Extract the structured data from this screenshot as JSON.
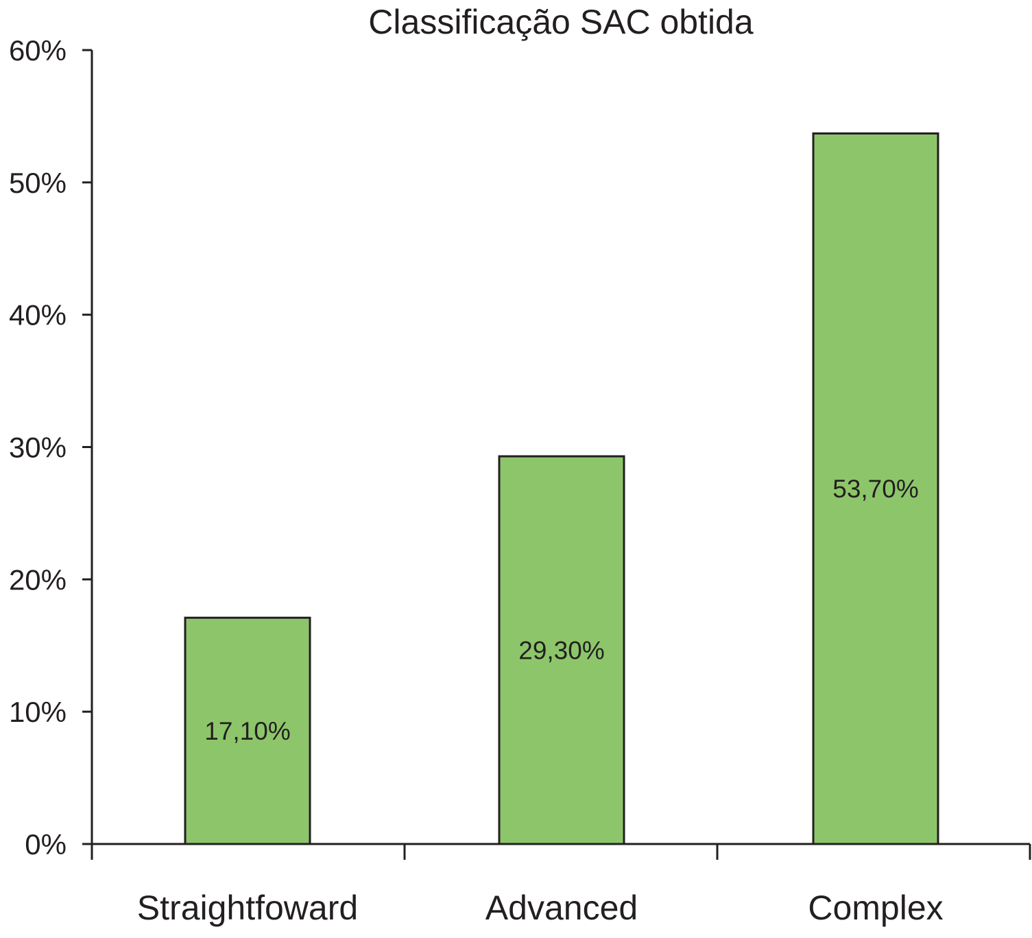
{
  "chart_data": {
    "type": "bar",
    "title": "Classificação SAC obtida",
    "xlabel": "",
    "ylabel": "",
    "categories": [
      "Straightfoward",
      "Advanced",
      "Complex"
    ],
    "values": [
      17.1,
      29.3,
      53.7
    ],
    "value_labels": [
      "17,10%",
      "29,30%",
      "53,70%"
    ],
    "ylim": [
      0,
      60
    ],
    "y_ticks": [
      0,
      10,
      20,
      30,
      40,
      50,
      60
    ],
    "y_tick_labels": [
      "0%",
      "10%",
      "20%",
      "30%",
      "40%",
      "50%",
      "60%"
    ],
    "grid": false,
    "legend": "none",
    "bar_color": "#8dc66a",
    "edge_color": "#231f20"
  }
}
